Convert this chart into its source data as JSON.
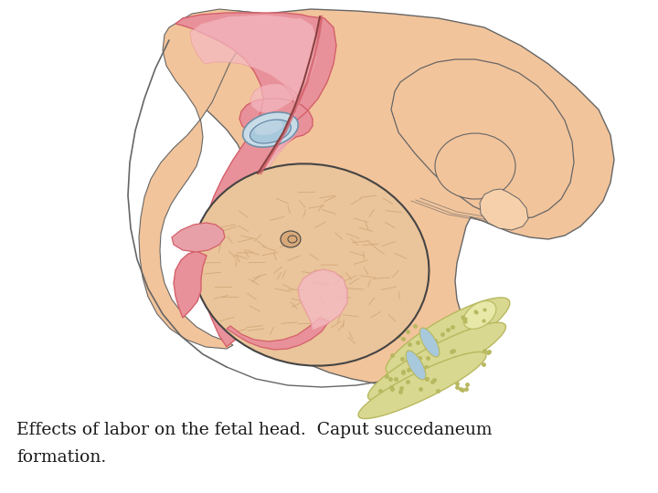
{
  "title_line1": "Effects of labor on the fetal head.  Caput succedaneum",
  "title_line2": "formation.",
  "text_color": "#1a1a1a",
  "bg_color": "#ffffff",
  "text_fontsize": 13.5,
  "skin_color": "#F2C49B",
  "skin_light": "#F5D0AA",
  "pink_color": "#E8919A",
  "pink_light": "#F4BAC2",
  "pink_dark": "#D4606A",
  "head_color": "#EAC49A",
  "head_hair": "#C8A070",
  "blue_color": "#A8C8DC",
  "blue_light": "#C8DCE8",
  "yellow_bone": "#D8D890",
  "yellow_light": "#E8E8A8",
  "yellow_dark": "#B8B860",
  "outline_thin": "#888888",
  "outline_med": "#666666",
  "outline_dark": "#444444",
  "white": "#ffffff"
}
